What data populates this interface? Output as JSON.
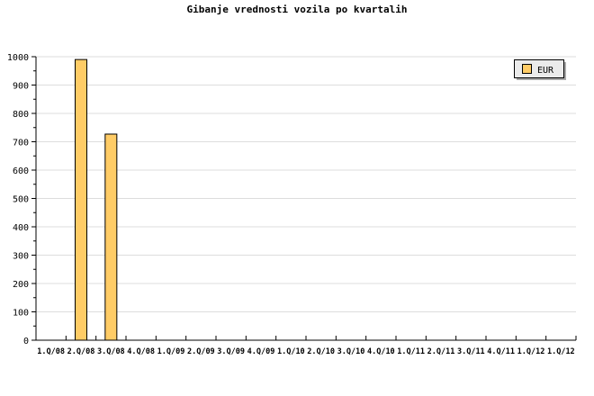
{
  "chart_data": {
    "type": "bar",
    "title": "Gibanje vrednosti vozila po kvartalih",
    "xlabel": "",
    "ylabel": "",
    "categories": [
      "1.Q/08",
      "2.Q/08",
      "3.Q/08",
      "4.Q/08",
      "1.Q/09",
      "2.Q/09",
      "3.Q/09",
      "4.Q/09",
      "1.Q/10",
      "2.Q/10",
      "3.Q/10",
      "4.Q/10",
      "1.Q/11",
      "2.Q/11",
      "3.Q/11",
      "4.Q/11",
      "1.Q/12",
      "1.Q/12"
    ],
    "series": [
      {
        "name": "EUR",
        "color": "#ffcc66",
        "values": [
          null,
          990,
          727,
          null,
          null,
          null,
          null,
          null,
          null,
          null,
          null,
          null,
          null,
          null,
          null,
          null,
          null,
          null
        ]
      }
    ],
    "ylim": [
      0,
      1000
    ],
    "yticks": [
      0,
      100,
      200,
      300,
      400,
      500,
      600,
      700,
      800,
      900,
      1000
    ],
    "grid": true,
    "legend": "top-right"
  }
}
